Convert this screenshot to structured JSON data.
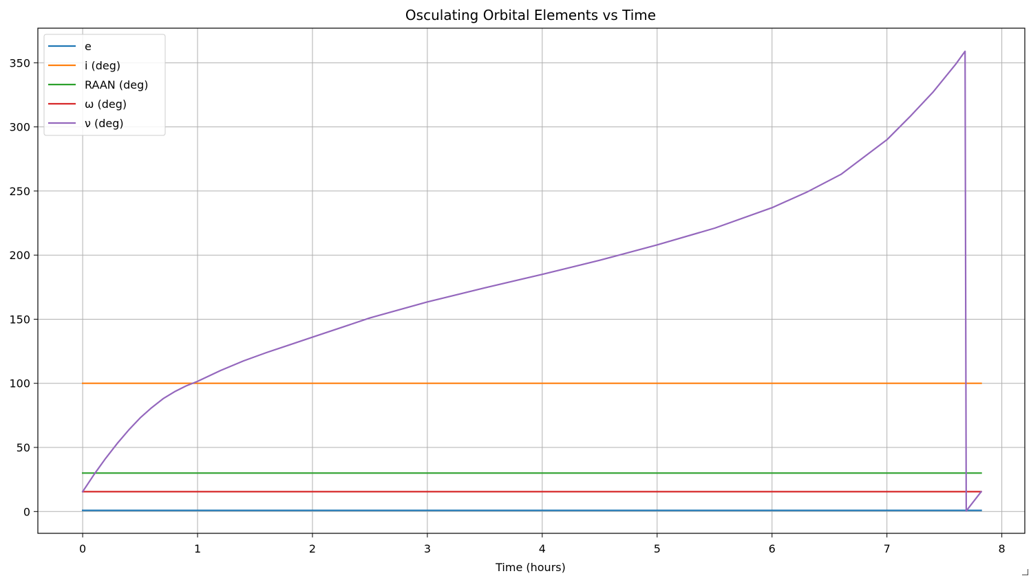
{
  "chart_data": {
    "type": "line",
    "title": "Osculating Orbital Elements vs Time",
    "xlabel": "Time (hours)",
    "ylabel": "",
    "xlim": [
      -0.39,
      8.2
    ],
    "ylim": [
      -17,
      377
    ],
    "xticks": [
      0,
      1,
      2,
      3,
      4,
      5,
      6,
      7,
      8
    ],
    "yticks": [
      0,
      50,
      100,
      150,
      200,
      250,
      300,
      350
    ],
    "grid": true,
    "legend_position": "upper-left",
    "series": [
      {
        "name": "e",
        "color": "#1f77b4",
        "x": [
          0,
          7.82
        ],
        "y": [
          0.9,
          0.9
        ]
      },
      {
        "name": "i (deg)",
        "color": "#ff7f0e",
        "x": [
          0,
          7.82
        ],
        "y": [
          100,
          100
        ]
      },
      {
        "name": "RAAN (deg)",
        "color": "#2ca02c",
        "x": [
          0,
          7.82
        ],
        "y": [
          30,
          30
        ]
      },
      {
        "name": "ω (deg)",
        "color": "#d62728",
        "x": [
          0,
          7.82
        ],
        "y": [
          15.5,
          15.5
        ]
      },
      {
        "name": "ν (deg)",
        "color": "#9467bd",
        "x": [
          0,
          0.1,
          0.2,
          0.3,
          0.4,
          0.5,
          0.6,
          0.7,
          0.8,
          0.9,
          1.0,
          1.2,
          1.4,
          1.6,
          1.8,
          2.0,
          2.5,
          3.0,
          3.5,
          4.0,
          4.5,
          5.0,
          5.5,
          6.0,
          6.3,
          6.6,
          7.0,
          7.2,
          7.4,
          7.6,
          7.68,
          7.69,
          7.82
        ],
        "y": [
          15.5,
          29,
          41.5,
          53,
          63.5,
          73,
          81,
          88,
          93.5,
          98,
          101.5,
          110,
          117.5,
          124,
          130,
          136,
          151,
          163.5,
          174.5,
          185,
          196,
          208,
          221,
          237,
          249,
          263,
          290,
          308,
          327,
          349,
          359,
          0.5,
          15.5
        ]
      }
    ]
  }
}
